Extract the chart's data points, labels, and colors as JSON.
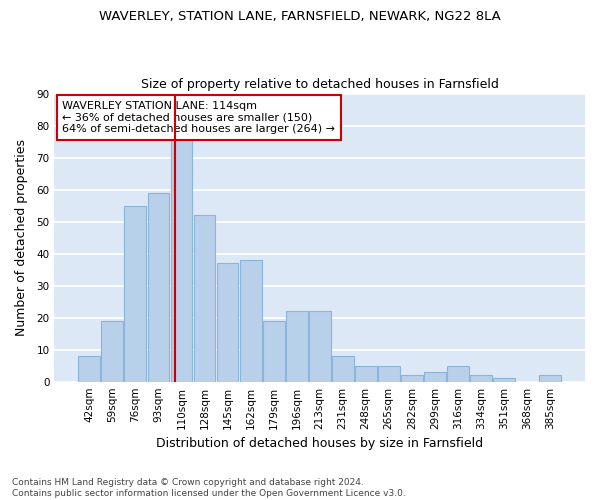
{
  "title1": "WAVERLEY, STATION LANE, FARNSFIELD, NEWARK, NG22 8LA",
  "title2": "Size of property relative to detached houses in Farnsfield",
  "xlabel": "Distribution of detached houses by size in Farnsfield",
  "ylabel": "Number of detached properties",
  "footnote": "Contains HM Land Registry data © Crown copyright and database right 2024.\nContains public sector information licensed under the Open Government Licence v3.0.",
  "bin_labels": [
    "42sqm",
    "59sqm",
    "76sqm",
    "93sqm",
    "110sqm",
    "128sqm",
    "145sqm",
    "162sqm",
    "179sqm",
    "196sqm",
    "213sqm",
    "231sqm",
    "248sqm",
    "265sqm",
    "282sqm",
    "299sqm",
    "316sqm",
    "334sqm",
    "351sqm",
    "368sqm",
    "385sqm"
  ],
  "values": [
    8,
    19,
    55,
    59,
    76,
    52,
    37,
    38,
    19,
    22,
    22,
    8,
    5,
    5,
    2,
    3,
    5,
    2,
    1,
    0,
    2
  ],
  "bar_color": "#b8d0ea",
  "bar_edge_color": "#8ab4d8",
  "annotation_line_color": "#cc0000",
  "annotation_box_text": "WAVERLEY STATION LANE: 114sqm\n← 36% of detached houses are smaller (150)\n64% of semi-detached houses are larger (264) →",
  "annotation_box_color": "#cc0000",
  "ylim": [
    0,
    90
  ],
  "yticks": [
    0,
    10,
    20,
    30,
    40,
    50,
    60,
    70,
    80,
    90
  ],
  "background_color": "#dce8f5",
  "grid_color": "#ffffff",
  "fig_background": "#ffffff",
  "title_fontsize": 9.5,
  "subtitle_fontsize": 9,
  "axis_label_fontsize": 9,
  "tick_fontsize": 7.5,
  "annotation_fontsize": 8
}
